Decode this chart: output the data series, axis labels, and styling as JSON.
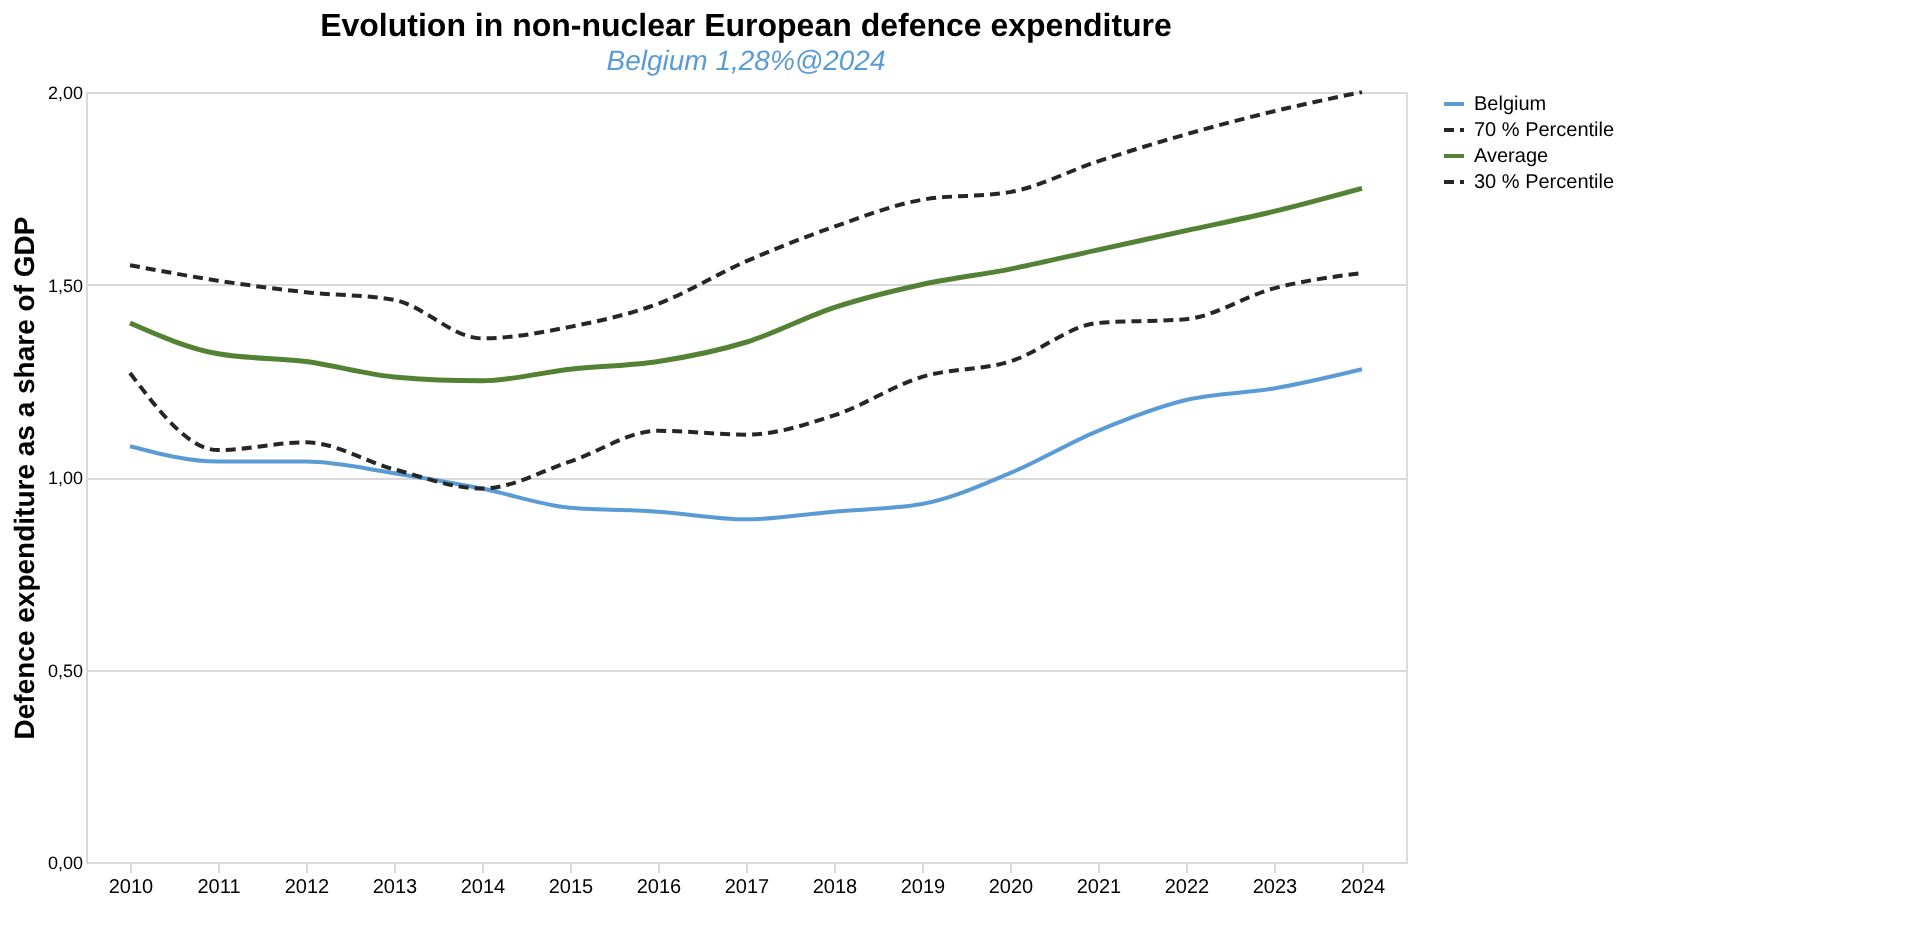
{
  "chart_data": {
    "type": "line",
    "title": "Evolution in non-nuclear European defence expenditure",
    "subtitle": "Belgium 1,28%@2024",
    "ylabel": "Defence expenditure as a share of GDP",
    "categories": [
      "2010",
      "2011",
      "2012",
      "2013",
      "2014",
      "2015",
      "2016",
      "2017",
      "2018",
      "2019",
      "2020",
      "2021",
      "2022",
      "2023",
      "2024"
    ],
    "series": [
      {
        "name": "Belgium",
        "color": "#5b9bd5",
        "line_style": "solid",
        "values": [
          1.08,
          1.04,
          1.04,
          1.01,
          0.97,
          0.92,
          0.91,
          0.89,
          0.91,
          0.93,
          1.01,
          1.12,
          1.2,
          1.23,
          1.28
        ]
      },
      {
        "name": "70 % Percentile",
        "color": "#262626",
        "line_style": "dashed",
        "values": [
          1.55,
          1.51,
          1.48,
          1.46,
          1.36,
          1.39,
          1.45,
          1.56,
          1.65,
          1.72,
          1.74,
          1.82,
          1.89,
          1.95,
          2.0
        ]
      },
      {
        "name": "Average",
        "color": "#548235",
        "line_style": "solid",
        "values": [
          1.4,
          1.32,
          1.3,
          1.26,
          1.25,
          1.28,
          1.3,
          1.35,
          1.44,
          1.5,
          1.54,
          1.59,
          1.64,
          1.69,
          1.75
        ]
      },
      {
        "name": "30 % Percentile",
        "color": "#262626",
        "line_style": "dashed",
        "values": [
          1.27,
          1.07,
          1.09,
          1.02,
          0.97,
          1.04,
          1.12,
          1.11,
          1.16,
          1.26,
          1.3,
          1.4,
          1.41,
          1.49,
          1.53
        ]
      }
    ],
    "ylim": [
      0,
      2
    ],
    "yticks": [
      {
        "value": 0,
        "label": "0,00"
      },
      {
        "value": 0.5,
        "label": "0,50"
      },
      {
        "value": 1,
        "label": "1,00"
      },
      {
        "value": 1.5,
        "label": "1,50"
      },
      {
        "value": 2,
        "label": "2,00"
      }
    ],
    "grid": "y",
    "legend": "right",
    "marker": "none"
  }
}
